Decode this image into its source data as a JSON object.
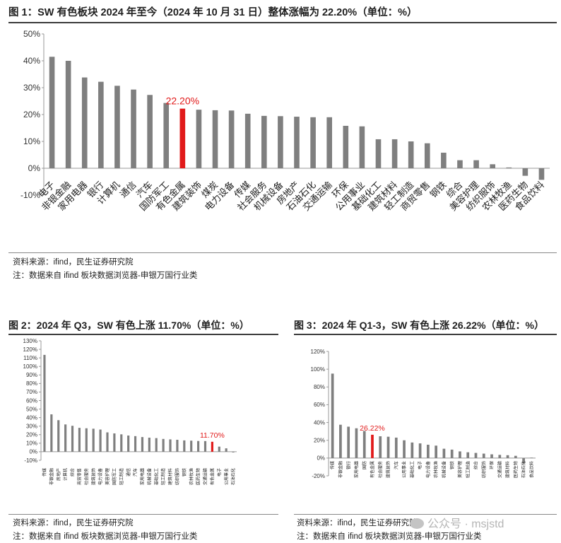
{
  "figures": [
    {
      "title": "图 1：SW 有色板块 2024 年至今（2024 年 10 月 31 日）整体涨幅为 22.20%（单位：%）",
      "source": "资料来源：ifind，民生证券研究院",
      "note": "注：数据来自 ifind 板块数据浏览器-申银万国行业类"
    },
    {
      "title": "图 2：2024 年 Q3，SW 有色上涨 11.70%（单位：%）",
      "source": "资料来源：ifind，民生证券研究院",
      "note": "注：数据来自 ifind 板块数据浏览器-申银万国行业类"
    },
    {
      "title": "图 3：2024 年 Q1-3，SW 有色上涨 26.22%（单位：%）",
      "source": "资料来源：ifind，民生证券研究院",
      "note": "注：数据来自 ifind 板块数据浏览器-申银万国行业类"
    }
  ],
  "watermark": "公众号 · msjstd",
  "colors": {
    "bar": "#7f7f7f",
    "highlight": "#e11a1a",
    "axis": "#999999"
  },
  "chart_data": [
    {
      "type": "bar",
      "title": "",
      "ylim": [
        -10,
        50
      ],
      "yticks": [
        -10,
        0,
        10,
        20,
        30,
        40,
        50
      ],
      "tick_suffix": "%",
      "highlight": "有色金属",
      "highlight_label": "22.20%",
      "categories": [
        "电子",
        "非银金融",
        "家用电器",
        "银行",
        "计算机",
        "通信",
        "汽车",
        "国防军工",
        "有色金属",
        "建筑装饰",
        "煤炭",
        "电力设备",
        "传媒",
        "社会服务",
        "机械设备",
        "房地产",
        "石油石化",
        "交通运输",
        "环保",
        "公用事业",
        "基础化工",
        "建筑材料",
        "轻工制造",
        "商贸零售",
        "钢铁",
        "综合",
        "美容护理",
        "纺织服饰",
        "农林牧渔",
        "医药生物",
        "食品饮料"
      ],
      "values": [
        41.5,
        40.0,
        33.8,
        32.2,
        30.7,
        29.3,
        27.3,
        24.3,
        22.2,
        21.8,
        21.6,
        21.5,
        20.3,
        19.5,
        19.4,
        19.2,
        19.0,
        19.0,
        15.8,
        15.6,
        10.8,
        10.8,
        10.0,
        9.3,
        5.8,
        3.0,
        3.0,
        1.5,
        0.3,
        -2.8,
        -4.3
      ]
    },
    {
      "type": "bar",
      "title": "",
      "ylim": [
        -10,
        130
      ],
      "yticks": [
        -10,
        0,
        10,
        20,
        30,
        40,
        50,
        60,
        70,
        80,
        90,
        100,
        110,
        120,
        130
      ],
      "tick_suffix": "%",
      "highlight": "有色金属",
      "highlight_label": "11.70%",
      "categories": [
        "传媒",
        "非银金融",
        "房地产",
        "计算机",
        "综合",
        "商贸零售",
        "社会服务",
        "建筑装饰",
        "电力设备",
        "美容护理",
        "国防军工",
        "轻工制造",
        "通信",
        "汽车",
        "家用电器",
        "机械设备",
        "基础化工",
        "轻工制造",
        "建筑材料",
        "纺织服饰",
        "钢铁",
        "农林牧渔",
        "医药生物",
        "交通运输",
        "有色金属",
        "电子",
        "公用事业",
        "石油石化"
      ],
      "values": [
        113.5,
        43.8,
        37.0,
        32.0,
        30.4,
        28.0,
        27.5,
        27.0,
        26.0,
        22.7,
        21.5,
        20.4,
        19.0,
        18.3,
        17.2,
        16.5,
        16.0,
        15.0,
        14.5,
        14.0,
        13.3,
        13.0,
        12.6,
        12.5,
        11.7,
        6.0,
        4.0,
        -0.8
      ]
    },
    {
      "type": "bar",
      "title": "",
      "ylim": [
        -20,
        120
      ],
      "yticks": [
        -20,
        0,
        20,
        40,
        60,
        80,
        100,
        120
      ],
      "tick_suffix": "%",
      "highlight": "有色金属",
      "highlight_label": "26.22%",
      "categories": [
        "传媒",
        "非银金融",
        "银行",
        "家用电器",
        "国防",
        "有色金属",
        "社会服务",
        "建筑装饰",
        "汽车",
        "公用事业",
        "基础化工",
        "电子",
        "电力设备",
        "农林牧渔",
        "机械设备",
        "钢铁",
        "美容护理",
        "轻工制造",
        "综合",
        "纺织服饰",
        "环保",
        "交通运输",
        "建筑材料",
        "医药生物",
        "石油石化",
        "食品饮料"
      ],
      "values": [
        95.0,
        37.5,
        35.3,
        33.5,
        30.5,
        26.22,
        24.5,
        24.0,
        23.0,
        20.0,
        17.5,
        16.5,
        15.0,
        14.0,
        10.5,
        9.5,
        7.5,
        6.5,
        5.8,
        5.0,
        4.2,
        3.6,
        3.2,
        2.5,
        -6.0,
        0.5
      ]
    }
  ]
}
